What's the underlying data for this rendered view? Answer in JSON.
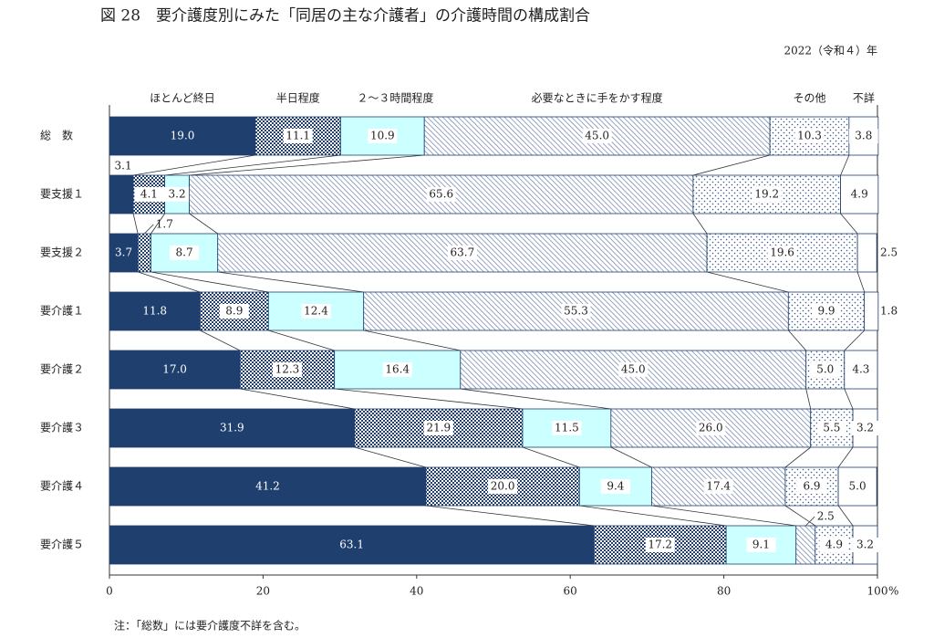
{
  "chart_data": {
    "type": "stacked_barh",
    "title": "図 28　要介護度別にみた「同居の主な介護者」の介護時間の構成割合",
    "subtitle": "2022（令和４）年",
    "note": "注：「総数」には要介護度不詳を含む。",
    "x_label": "%",
    "categories": [
      "総　数",
      "要支援１",
      "要支援２",
      "要介護１",
      "要介護２",
      "要介護３",
      "要介護４",
      "要介護５"
    ],
    "series": [
      {
        "name": "ほとんど終日",
        "color": "#1f3f6e",
        "pattern": "solid",
        "values": [
          19.0,
          3.1,
          3.7,
          11.8,
          17.0,
          31.9,
          41.2,
          63.1
        ],
        "value_labels": [
          "19.0",
          "3.1",
          "3.7",
          "11.8",
          "17.0",
          "31.9",
          "41.2",
          "63.1"
        ]
      },
      {
        "name": "半日程度",
        "color": "#1f3f6e",
        "pattern": "checker",
        "values": [
          11.1,
          4.1,
          1.7,
          8.9,
          12.3,
          21.9,
          20.0,
          17.2
        ],
        "value_labels": [
          "11.1",
          "4.1",
          "1.7",
          "8.9",
          "12.3",
          "21.9",
          "20.0",
          "17.2"
        ]
      },
      {
        "name": "２～３時間程度",
        "color": "#ccffff",
        "pattern": "solid",
        "values": [
          10.9,
          3.2,
          8.7,
          12.4,
          16.4,
          11.5,
          9.4,
          9.1
        ],
        "value_labels": [
          "10.9",
          "3.2",
          "8.7",
          "12.4",
          "16.4",
          "11.5",
          "9.4",
          "9.1"
        ]
      },
      {
        "name": "必要なときに手をかす程度",
        "color": "#6a7ea6",
        "pattern": "diagonal",
        "values": [
          45.0,
          65.6,
          63.7,
          55.3,
          45.0,
          26.0,
          17.4,
          2.5
        ],
        "value_labels": [
          "45.0",
          "65.6",
          "63.7",
          "55.3",
          "45.0",
          "26.0",
          "17.4",
          "2.5"
        ]
      },
      {
        "name": "その他",
        "color": "#3c5a8a",
        "pattern": "dots",
        "values": [
          10.3,
          19.2,
          19.6,
          9.9,
          5.0,
          5.5,
          6.9,
          4.9
        ],
        "value_labels": [
          "10.3",
          "19.2",
          "19.6",
          "9.9",
          "5.0",
          "5.5",
          "6.9",
          "4.9"
        ]
      },
      {
        "name": "不詳",
        "color": "#ffffff",
        "pattern": "solid",
        "values": [
          3.8,
          4.9,
          2.5,
          1.8,
          4.3,
          3.2,
          5.0,
          3.2
        ],
        "value_labels": [
          "3.8",
          "4.9",
          "2.5",
          "1.8",
          "4.3",
          "3.2",
          "5.0",
          "3.2"
        ]
      }
    ],
    "xlim": [
      0,
      100
    ],
    "xticks": [
      0,
      20,
      40,
      60,
      80,
      100
    ]
  }
}
